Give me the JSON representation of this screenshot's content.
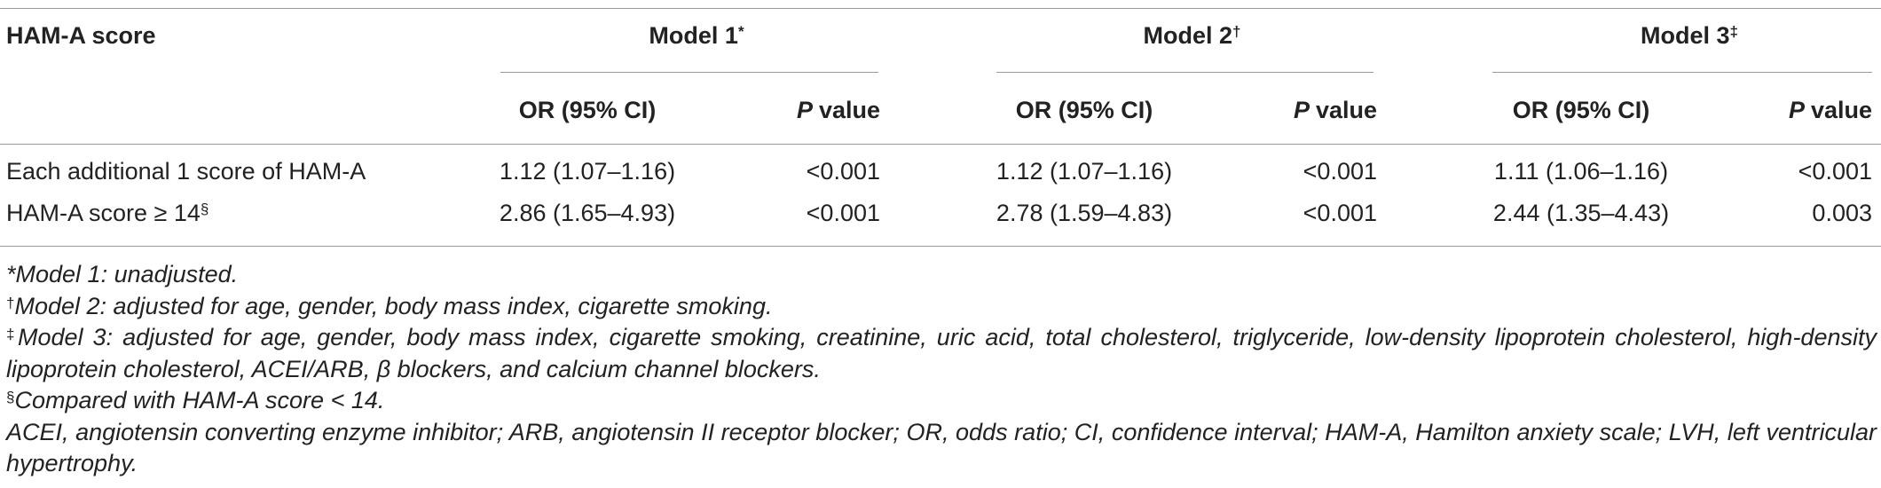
{
  "table": {
    "header": {
      "row_label": "HAM-A score",
      "groups": [
        {
          "name": "Model 1",
          "mark": "*"
        },
        {
          "name": "Model 2",
          "mark": "†"
        },
        {
          "name": "Model 3",
          "mark": "‡"
        }
      ],
      "or_label": "OR (95% CI)",
      "p_label": {
        "italic": "P",
        "rest": "value"
      }
    },
    "rows": [
      {
        "label": "Each additional 1 score of HAM-A",
        "mark": "",
        "cells": [
          "1.12 (1.07–1.16)",
          "<0.001",
          "1.12 (1.07–1.16)",
          "<0.001",
          "1.11 (1.06–1.16)",
          "<0.001"
        ]
      },
      {
        "label": "HAM-A score ≥ 14",
        "mark": "§",
        "cells": [
          "2.86 (1.65–4.93)",
          "<0.001",
          "2.78 (1.59–4.83)",
          "<0.001",
          "2.44 (1.35–4.43)",
          "0.003"
        ]
      }
    ],
    "footnotes": [
      {
        "mark": "*",
        "text": "Model 1: unadjusted."
      },
      {
        "mark": "†",
        "text": "Model 2: adjusted for age, gender, body mass index, cigarette smoking."
      },
      {
        "mark": "‡",
        "text": "Model 3: adjusted for age, gender, body mass index, cigarette smoking, creatinine, uric acid, total cholesterol, triglyceride, low-density lipoprotein cholesterol, high-density lipoprotein cholesterol, ACEI/ARB, β blockers, and calcium channel blockers."
      },
      {
        "mark": "§",
        "text": "Compared with HAM-A score < 14."
      },
      {
        "mark": "",
        "text": "ACEI, angiotensin converting enzyme inhibitor; ARB, angiotensin II receptor blocker; OR, odds ratio; CI, confidence interval; HAM-A, Hamilton anxiety scale; LVH, left ventricular hypertrophy."
      }
    ]
  }
}
